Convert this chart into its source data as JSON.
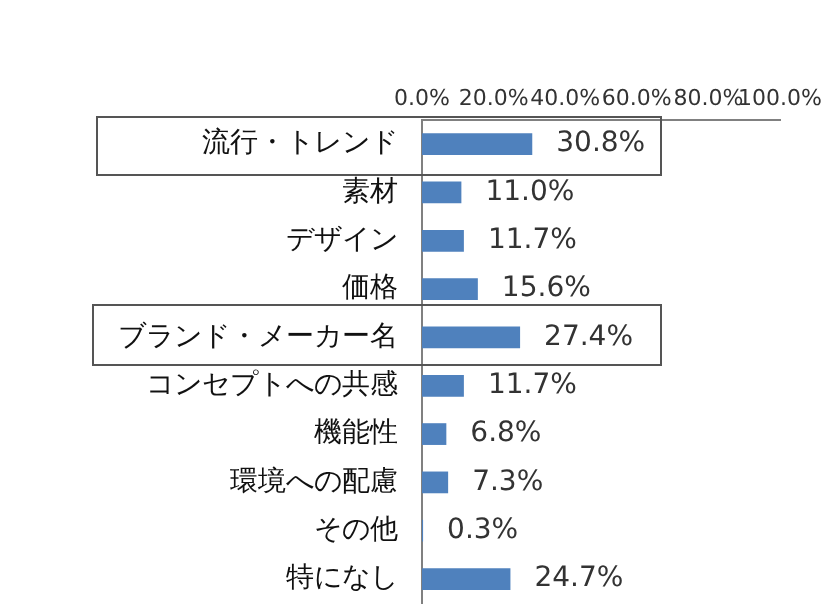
{
  "chart_data": {
    "type": "bar",
    "orientation": "horizontal",
    "categories": [
      "流行・トレンド",
      "素材",
      "デザイン",
      "価格",
      "ブランド・メーカー名",
      "コンセプトへの共感",
      "機能性",
      "環境への配慮",
      "その他",
      "特になし"
    ],
    "values": [
      30.8,
      11.0,
      11.7,
      15.6,
      27.4,
      11.7,
      6.8,
      7.3,
      0.3,
      24.7
    ],
    "value_labels": [
      "30.8%",
      "11.0%",
      "11.7%",
      "15.6%",
      "27.4%",
      "11.7%",
      "6.8%",
      "7.3%",
      "0.3%",
      "24.7%"
    ],
    "color": "#4f81bd",
    "xlim": [
      0,
      100
    ],
    "xticks": [
      {
        "value": 0,
        "label": "0.0%"
      },
      {
        "value": 20,
        "label": "20.0%"
      },
      {
        "value": 40,
        "label": "40.0%"
      },
      {
        "value": 60,
        "label": "60.0%"
      },
      {
        "value": 80,
        "label": "80.0%"
      },
      {
        "value": 100,
        "label": "100.0%"
      }
    ],
    "grid": false,
    "legend": false
  }
}
